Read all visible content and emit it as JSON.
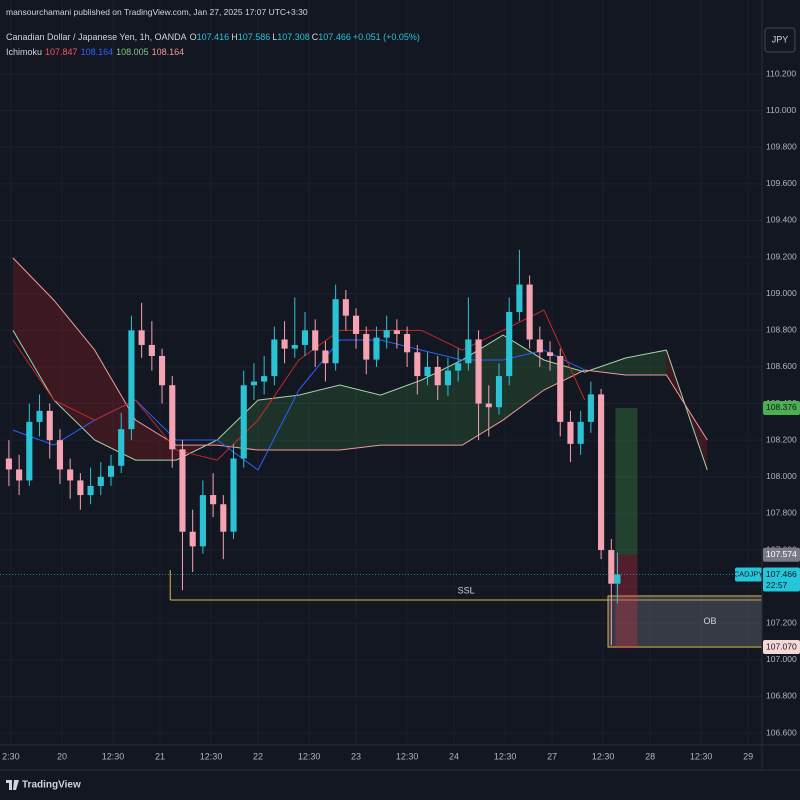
{
  "header": {
    "published": "mansourchamani published on TradingView.com, Jan 27, 2025 17:07 UTC+3:30",
    "currency": "JPY",
    "brand": "TradingView"
  },
  "chart_data": {
    "type": "candlestick",
    "title": "Canadian Dollar / Japanese Yen, 1h, OANDA",
    "ohlc": [
      {
        "label": "O",
        "value": 107.416
      },
      {
        "label": "H",
        "value": 107.586
      },
      {
        "label": "L",
        "value": 107.308
      },
      {
        "label": "C",
        "value": 107.466
      }
    ],
    "change": "+0.051 (+0.05%)",
    "up_color": "#2bc3d4",
    "down_color": "#f5a3b3",
    "x": [
      4,
      6.5,
      9,
      11.5,
      14,
      16.5,
      19,
      21.5,
      24,
      26.5,
      29,
      31.5,
      34,
      36.5,
      39,
      41.5,
      44,
      46.5,
      49,
      51.5,
      54,
      56.5,
      59,
      61.5,
      64,
      66.5,
      69,
      71.5,
      74,
      76.5,
      79,
      81.5,
      84,
      86.5,
      89,
      91.5,
      94,
      96.5,
      99,
      101.5,
      104,
      106.5,
      109,
      111.5,
      114,
      116.5,
      119,
      121.5,
      124,
      126.5,
      129,
      131.5,
      134,
      136.5,
      139,
      141.5,
      144,
      146.5,
      149,
      151.5,
      153
    ],
    "open": [
      108.1,
      108.04,
      107.98,
      108.3,
      108.36,
      108.2,
      108.04,
      107.98,
      107.9,
      107.95,
      108.0,
      108.06,
      108.26,
      108.8,
      108.72,
      108.66,
      108.5,
      108.15,
      107.7,
      107.62,
      107.9,
      107.85,
      107.7,
      108.1,
      108.5,
      108.52,
      108.55,
      108.75,
      108.7,
      108.72,
      108.8,
      108.69,
      108.62,
      108.97,
      108.88,
      108.78,
      108.64,
      108.76,
      108.8,
      108.78,
      108.68,
      108.55,
      108.6,
      108.5,
      108.58,
      108.62,
      108.75,
      108.4,
      108.38,
      108.55,
      108.9,
      109.05,
      108.75,
      108.68,
      108.66,
      108.3,
      108.18,
      108.3,
      108.45,
      107.6,
      107.416
    ],
    "high": [
      108.2,
      108.12,
      108.4,
      108.45,
      108.4,
      108.26,
      108.1,
      108.02,
      108.05,
      108.08,
      108.12,
      108.35,
      108.88,
      108.95,
      108.85,
      108.7,
      108.55,
      108.2,
      107.82,
      107.98,
      108.02,
      107.9,
      108.18,
      108.58,
      108.62,
      108.66,
      108.82,
      108.85,
      108.98,
      108.9,
      108.86,
      108.74,
      109.05,
      109.02,
      108.92,
      108.82,
      108.82,
      108.88,
      108.86,
      108.82,
      108.72,
      108.68,
      108.66,
      108.65,
      108.7,
      108.98,
      108.8,
      108.5,
      108.62,
      108.98,
      109.24,
      109.1,
      108.82,
      108.74,
      108.7,
      108.36,
      108.36,
      108.52,
      108.48,
      107.66,
      107.586
    ],
    "low": [
      107.95,
      107.9,
      107.95,
      108.22,
      108.1,
      107.96,
      107.88,
      107.82,
      107.85,
      107.9,
      107.95,
      108.02,
      108.2,
      108.65,
      108.58,
      108.4,
      108.05,
      107.38,
      107.48,
      107.58,
      107.78,
      107.55,
      107.66,
      108.05,
      108.42,
      108.45,
      108.5,
      108.62,
      108.65,
      108.66,
      108.6,
      108.52,
      108.58,
      108.8,
      108.7,
      108.56,
      108.6,
      108.7,
      108.7,
      108.6,
      108.45,
      108.5,
      108.42,
      108.44,
      108.52,
      108.58,
      108.2,
      108.22,
      108.34,
      108.5,
      108.85,
      108.7,
      108.6,
      108.58,
      108.22,
      108.08,
      108.12,
      108.24,
      107.55,
      107.08,
      107.308
    ],
    "close": [
      108.04,
      107.98,
      108.3,
      108.36,
      108.2,
      108.04,
      107.98,
      107.9,
      107.95,
      108.0,
      108.06,
      108.26,
      108.8,
      108.72,
      108.66,
      108.5,
      108.15,
      107.7,
      107.62,
      107.9,
      107.85,
      107.7,
      108.1,
      108.5,
      108.52,
      108.55,
      108.75,
      108.7,
      108.72,
      108.8,
      108.69,
      108.62,
      108.97,
      108.88,
      108.78,
      108.64,
      108.76,
      108.8,
      108.78,
      108.68,
      108.55,
      108.6,
      108.5,
      108.58,
      108.62,
      108.75,
      108.4,
      108.38,
      108.55,
      108.9,
      109.05,
      108.75,
      108.68,
      108.66,
      108.3,
      108.18,
      108.3,
      108.45,
      107.6,
      107.416,
      107.466
    ],
    "indicator": {
      "name": "Ichimoku",
      "values": [
        {
          "value": 107.847,
          "color": "#f7525f"
        },
        {
          "value": 108.164,
          "color": "#2962ff"
        },
        {
          "value": 108.005,
          "color": "#81c784"
        },
        {
          "value": 108.164,
          "color": "#ef9a9a"
        }
      ],
      "x": [
        5,
        15,
        25,
        35,
        45,
        55,
        65,
        75,
        85,
        95,
        105,
        115,
        125,
        135,
        145,
        155,
        165,
        175
      ],
      "lines": [
        {
          "color": "#2962ff",
          "values": [
            108.255,
            108.173,
            108.31,
            108.419,
            108.201,
            108.201,
            108.037,
            108.474,
            108.747,
            108.747,
            108.692,
            108.638,
            108.638,
            108.692,
            108.583,
            null,
            null,
            null
          ]
        },
        {
          "color": "#c62828",
          "values": [
            108.747,
            108.419,
            108.31,
            108.419,
            108.146,
            108.091,
            108.31,
            108.638,
            108.8,
            108.8,
            108.8,
            108.692,
            108.8,
            108.911,
            108.419,
            null,
            null,
            null
          ]
        }
      ],
      "span_a": {
        "color": "#a5d6a7",
        "values": [
          108.8,
          108.419,
          108.201,
          108.091,
          108.091,
          108.201,
          108.419,
          108.446,
          108.501,
          108.446,
          108.528,
          108.638,
          108.774,
          108.638,
          108.572,
          108.649,
          108.692,
          108.037
        ]
      },
      "span_b": {
        "color": "#ef9a9a",
        "values": [
          109.195,
          108.965,
          108.692,
          108.31,
          108.173,
          108.173,
          108.146,
          108.146,
          108.146,
          108.173,
          108.173,
          108.173,
          108.31,
          108.474,
          108.583,
          108.556,
          108.556,
          108.201
        ]
      }
    },
    "ylim": [
      106.535,
      110.495
    ],
    "yticks": [
      {
        "value": 110.2,
        "label": "110.200"
      },
      {
        "value": 110.0,
        "label": "110.000"
      },
      {
        "value": 109.8,
        "label": "109.800"
      },
      {
        "value": 109.6,
        "label": "109.600"
      },
      {
        "value": 109.4,
        "label": "109.400"
      },
      {
        "value": 109.2,
        "label": "109.200"
      },
      {
        "value": 109.0,
        "label": "109.000"
      },
      {
        "value": 108.8,
        "label": "108.800"
      },
      {
        "value": 108.6,
        "label": "108.600"
      },
      {
        "value": 108.4,
        "label": "108.400"
      },
      {
        "value": 108.2,
        "label": "108.200"
      },
      {
        "value": 108.0,
        "label": "108.000"
      },
      {
        "value": 107.8,
        "label": "107.800"
      },
      {
        "value": 107.6,
        "label": "107.600"
      },
      {
        "value": 107.4,
        "label": "107.400"
      },
      {
        "value": 107.2,
        "label": "107.200"
      },
      {
        "value": 107.0,
        "label": "107.000"
      },
      {
        "value": 106.8,
        "label": "106.800"
      },
      {
        "value": 106.6,
        "label": "106.600"
      }
    ],
    "xlim": [
      1.82,
      188.4
    ],
    "xticks": [
      {
        "value": 4.5,
        "label": "2:30"
      },
      {
        "value": 17,
        "label": "20"
      },
      {
        "value": 29.5,
        "label": "12:30"
      },
      {
        "value": 41,
        "label": "21"
      },
      {
        "value": 53.5,
        "label": "12:30"
      },
      {
        "value": 65,
        "label": "22"
      },
      {
        "value": 77.5,
        "label": "12:30"
      },
      {
        "value": 89,
        "label": "23"
      },
      {
        "value": 101.5,
        "label": "12:30"
      },
      {
        "value": 113,
        "label": "24"
      },
      {
        "value": 125.5,
        "label": "12:30"
      },
      {
        "value": 137,
        "label": "27"
      },
      {
        "value": 149.5,
        "label": "12:30"
      },
      {
        "value": 161,
        "label": "28"
      },
      {
        "value": 173.5,
        "label": "12:30"
      },
      {
        "value": 185,
        "label": "29"
      }
    ],
    "grid": true,
    "last_price": {
      "symbol": "CADJPY",
      "value": 107.466,
      "countdown": "22:57",
      "color": "#26c6da"
    },
    "ssl": {
      "label": "SSL",
      "value": 107.327,
      "x_start": 43.5,
      "color": "#e0b74d"
    },
    "ob": {
      "label": "OB",
      "top": 107.349,
      "bottom": {
        "value": 107.07,
        "label": "107.070"
      },
      "x_start": 150.7,
      "color": "#e0b74d"
    },
    "position": {
      "x_start": 152.5,
      "x_end": 157.9,
      "target": 108.376,
      "entry": 107.574,
      "stop": 107.064
    }
  }
}
